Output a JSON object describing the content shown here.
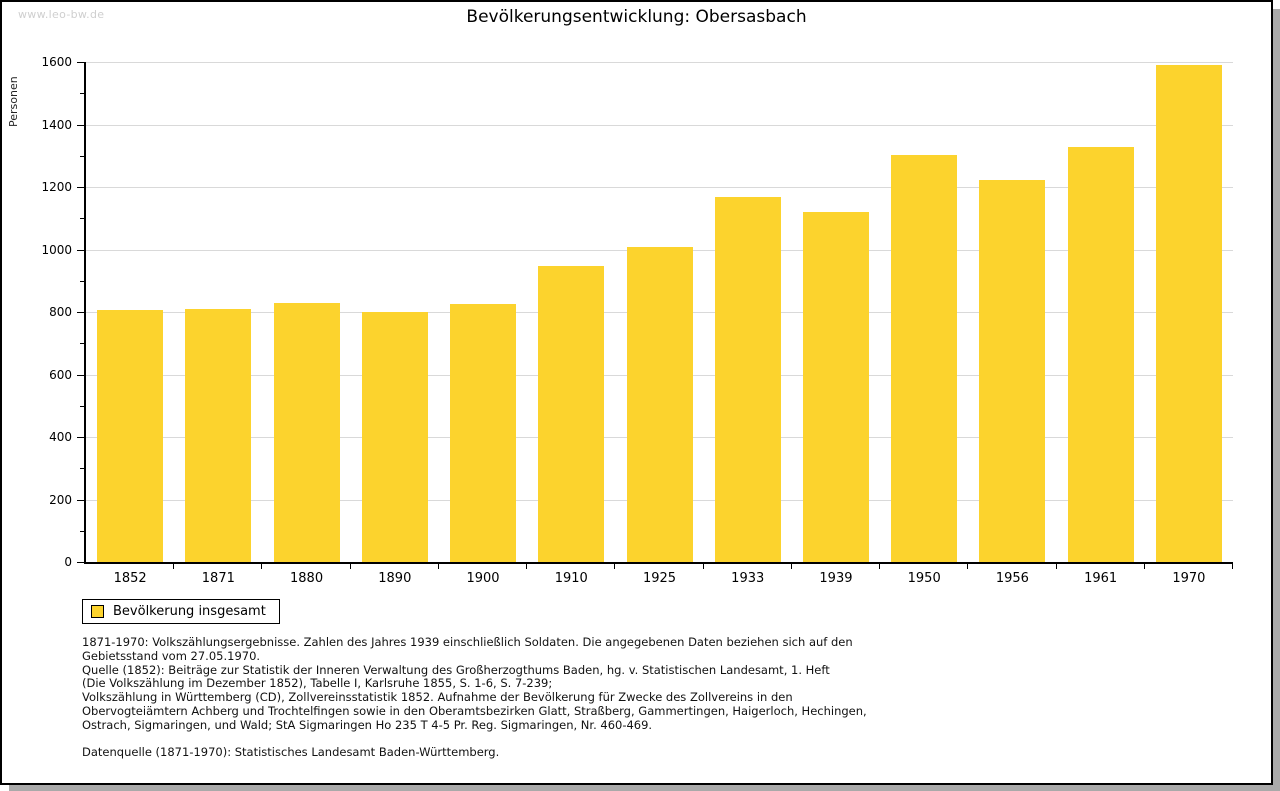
{
  "page": {
    "watermark": "www.leo-bw.de"
  },
  "chart_data": {
    "type": "bar",
    "title": "Bevölkerungsentwicklung: Obersasbach",
    "xlabel": "",
    "ylabel": "Personen",
    "categories": [
      "1852",
      "1871",
      "1880",
      "1890",
      "1900",
      "1910",
      "1925",
      "1933",
      "1939",
      "1950",
      "1956",
      "1961",
      "1970"
    ],
    "values": [
      806,
      810,
      830,
      800,
      826,
      947,
      1008,
      1168,
      1120,
      1302,
      1222,
      1328,
      1590
    ],
    "ylim": [
      0,
      1600
    ],
    "ytick_step": 200,
    "yminor_step": 100,
    "grid": true,
    "bar_color": "#fcd32d",
    "grid_color": "#d9d9d9",
    "legend": {
      "label": "Bevölkerung insgesamt",
      "position": "bottom-left"
    }
  },
  "footnotes": {
    "lines": [
      "1871-1970: Volkszählungsergebnisse. Zahlen des Jahres 1939 einschließlich Soldaten. Die angegebenen Daten beziehen sich auf den",
      "Gebietsstand vom 27.05.1970.",
      "Quelle (1852): Beiträge zur Statistik der Inneren Verwaltung des Großherzogthums Baden, hg. v. Statistischen Landesamt, 1. Heft",
      "(Die Volkszählung im Dezember 1852), Tabelle I, Karlsruhe 1855, S. 1-6, S. 7-239;",
      "Volkszählung in Württemberg (CD), Zollvereinsstatistik 1852. Aufnahme der Bevölkerung für Zwecke des Zollvereins in den",
      "Obervogteiämtern Achberg und Trochtelfingen sowie in den Oberamtsbezirken Glatt, Straßberg, Gammertingen, Haigerloch, Hechingen,",
      "Ostrach, Sigmaringen, und Wald; StA Sigmaringen Ho 235 T 4-5 Pr. Reg. Sigmaringen, Nr. 460-469.",
      "",
      "Datenquelle (1871-1970): Statistisches Landesamt Baden-Württemberg."
    ]
  }
}
